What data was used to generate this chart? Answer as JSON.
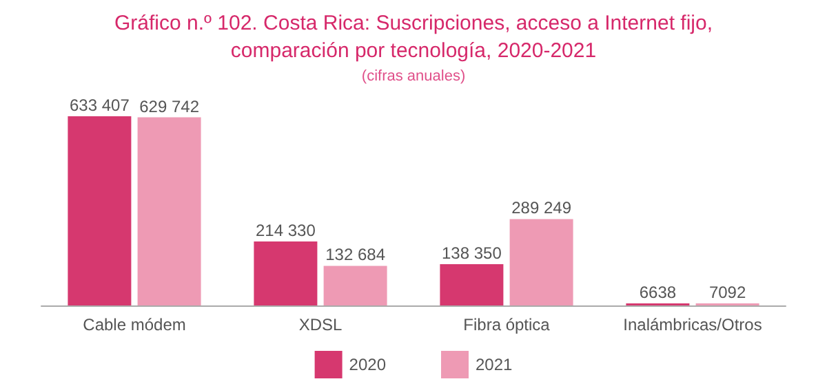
{
  "chart_data": {
    "type": "bar",
    "title": "Gráfico n.º 102. Costa Rica: Suscripciones, acceso a Internet fijo, comparación por tecnología, 2020-2021",
    "subtitle": "(cifras anuales)",
    "categories": [
      "Cable módem",
      "XDSL",
      "Fibra óptica",
      "Inalámbricas/Otros"
    ],
    "series": [
      {
        "name": "2020",
        "color": "#d6386f",
        "values": [
          633407,
          214330,
          138350,
          6638
        ],
        "value_labels": [
          "633 407",
          "214 330",
          "138 350",
          "6638"
        ]
      },
      {
        "name": "2021",
        "color": "#ee9ab4",
        "values": [
          629742,
          132684,
          289249,
          7092
        ],
        "value_labels": [
          "629 742",
          "132 684",
          "289 249",
          "7092"
        ]
      }
    ],
    "legend": "bottom"
  }
}
